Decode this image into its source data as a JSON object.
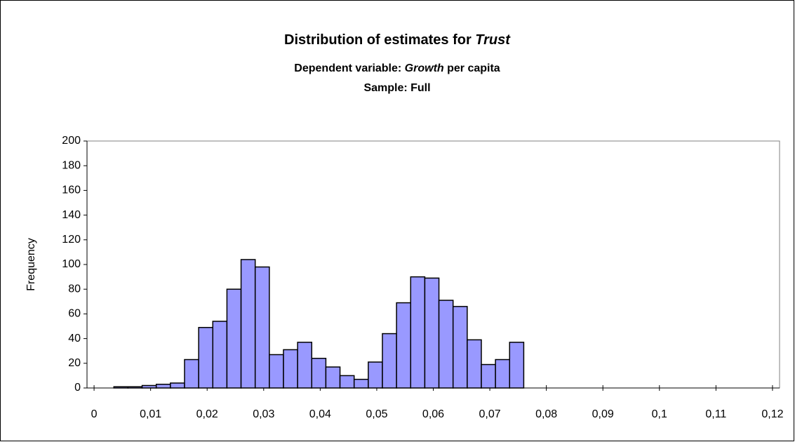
{
  "chart_data": {
    "type": "histogram",
    "title": {
      "text": "Distribution of estimates for ",
      "emphasis": "Trust"
    },
    "subtitle": {
      "before": "Dependent variable: ",
      "emphasis": "Growth",
      "after": " per capita"
    },
    "subtitle2": "Sample: Full",
    "y_label": "Frequency",
    "bins": [
      0.0035,
      0.006,
      0.0085,
      0.011,
      0.0135,
      0.016,
      0.0185,
      0.021,
      0.0235,
      0.026,
      0.0285,
      0.031,
      0.0335,
      0.036,
      0.0385,
      0.041,
      0.0435,
      0.046,
      0.0485,
      0.051,
      0.0535,
      0.056,
      0.0585,
      0.061,
      0.0635,
      0.066,
      0.0685,
      0.071,
      0.0735,
      0.076
    ],
    "values": [
      1,
      1,
      2,
      3,
      4,
      23,
      49,
      54,
      80,
      104,
      98,
      27,
      31,
      37,
      24,
      17,
      10,
      7,
      21,
      44,
      69,
      90,
      89,
      71,
      66,
      39,
      19,
      23,
      37
    ],
    "color": "#9999ff",
    "xlim": [
      -0.00125,
      0.12125
    ],
    "xticks": [
      0,
      {
        "value": 0.01,
        "label": "0,01"
      },
      {
        "value": 0.02,
        "label": "0,02"
      },
      {
        "value": 0.03,
        "label": "0,03"
      },
      {
        "value": 0.04,
        "label": "0,04"
      },
      {
        "value": 0.05,
        "label": "0,05"
      },
      {
        "value": 0.06,
        "label": "0,06"
      },
      {
        "value": 0.07,
        "label": "0,07"
      },
      {
        "value": 0.08,
        "label": "0,08"
      },
      {
        "value": 0.09,
        "label": "0,09"
      },
      {
        "value": 0.1,
        "label": "0,1"
      },
      {
        "value": 0.11,
        "label": "0,11"
      },
      {
        "value": 0.12,
        "label": "0,12"
      }
    ],
    "ylim": [
      0,
      200
    ],
    "yticks": [
      0,
      20,
      40,
      60,
      80,
      100,
      120,
      140,
      160,
      180,
      200
    ],
    "grid": false
  }
}
